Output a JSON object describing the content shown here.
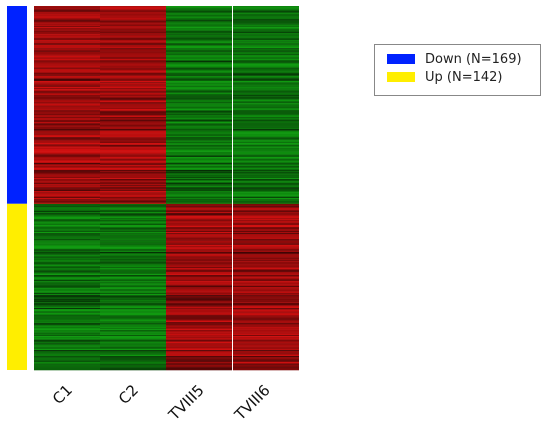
{
  "chart_data": {
    "type": "heatmap",
    "columns": [
      "C1",
      "C2",
      "TVIII5",
      "TVIII6"
    ],
    "groups": [
      {
        "label": "Down (N=169)",
        "n": 169,
        "color": "#0022ff",
        "pattern": [
          "high",
          "high",
          "low",
          "low"
        ]
      },
      {
        "label": "Up (N=142)",
        "n": 142,
        "color": "#ffee00",
        "pattern": [
          "low",
          "low",
          "high",
          "high"
        ]
      }
    ],
    "colors": {
      "high": "#d01010",
      "low": "#109a10",
      "mid": "#101010"
    },
    "legend": {
      "position": "top-right"
    }
  }
}
